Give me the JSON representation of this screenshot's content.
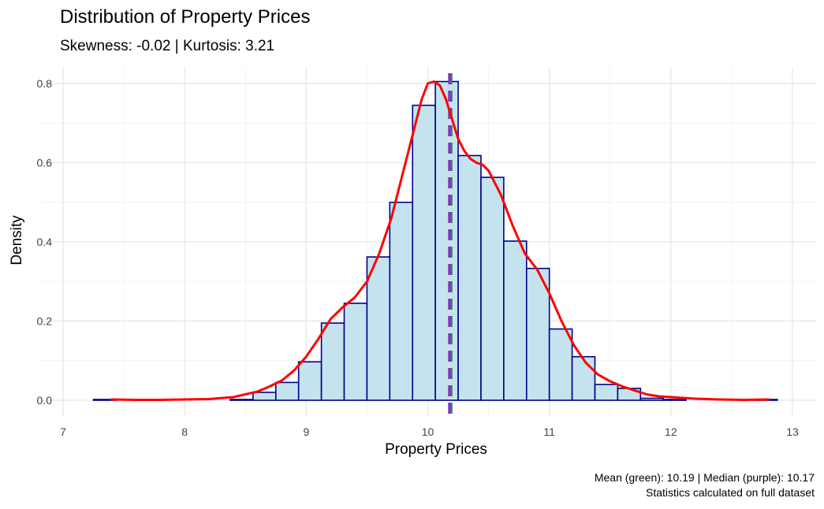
{
  "chart_data": {
    "type": "bar",
    "title": "Distribution of Property Prices",
    "subtitle": "Skewness: -0.02 | Kurtosis: 3.21",
    "xlabel": "Property Prices",
    "ylabel": "Density",
    "caption_lines": [
      "Mean (green): 10.19 | Median (purple): 10.17",
      "Statistics calculated on full dataset"
    ],
    "xlim": [
      7,
      13
    ],
    "ylim": [
      0,
      0.8
    ],
    "x_ticks": [
      "7",
      "8",
      "9",
      "10",
      "11",
      "12",
      "13"
    ],
    "y_ticks": [
      "0.0",
      "0.2",
      "0.4",
      "0.6",
      "0.8"
    ],
    "grid": true,
    "histogram": {
      "bin_width": 0.1875,
      "bin_starts": [
        7.25,
        7.4375,
        7.625,
        7.8125,
        8.0,
        8.1875,
        8.375,
        8.5625,
        8.75,
        8.9375,
        9.125,
        9.3125,
        9.5,
        9.6875,
        9.875,
        10.0625,
        10.25,
        10.4375,
        10.625,
        10.8125,
        11.0,
        11.1875,
        11.375,
        11.5625,
        11.75,
        11.9375,
        12.125,
        12.3125,
        12.5,
        12.6875
      ],
      "values": [
        0.002,
        0.0,
        0.0,
        0.0,
        0.0,
        0.0,
        0.002,
        0.02,
        0.045,
        0.097,
        0.195,
        0.245,
        0.362,
        0.5,
        0.745,
        0.805,
        0.618,
        0.563,
        0.402,
        0.333,
        0.18,
        0.11,
        0.04,
        0.03,
        0.005,
        0.002,
        0.0,
        0.0,
        0.0,
        0.002
      ],
      "fill": "#c5e3ee",
      "stroke": "#00008b"
    },
    "density_curve": {
      "color": "#ff0000",
      "x": [
        7.4,
        7.6,
        7.8,
        8.0,
        8.2,
        8.4,
        8.6,
        8.7,
        8.8,
        8.9,
        9.0,
        9.1,
        9.2,
        9.3,
        9.4,
        9.5,
        9.6,
        9.7,
        9.8,
        9.9,
        9.95,
        10.0,
        10.05,
        10.1,
        10.15,
        10.2,
        10.25,
        10.3,
        10.35,
        10.4,
        10.45,
        10.5,
        10.6,
        10.7,
        10.8,
        10.9,
        11.0,
        11.1,
        11.2,
        11.3,
        11.4,
        11.5,
        11.6,
        11.7,
        11.8,
        11.9,
        12.0,
        12.2,
        12.4,
        12.6,
        12.8
      ],
      "y": [
        0.002,
        0.001,
        0.001,
        0.002,
        0.003,
        0.008,
        0.022,
        0.035,
        0.05,
        0.075,
        0.11,
        0.155,
        0.205,
        0.235,
        0.26,
        0.3,
        0.37,
        0.46,
        0.58,
        0.7,
        0.76,
        0.8,
        0.805,
        0.795,
        0.76,
        0.71,
        0.66,
        0.63,
        0.61,
        0.6,
        0.595,
        0.58,
        0.52,
        0.44,
        0.37,
        0.33,
        0.27,
        0.2,
        0.14,
        0.095,
        0.065,
        0.048,
        0.035,
        0.025,
        0.015,
        0.01,
        0.008,
        0.004,
        0.002,
        0.001,
        0.002
      ]
    },
    "mean": {
      "value": 10.19,
      "color": "#2e8b57"
    },
    "median": {
      "value": 10.17,
      "color": "#7b3fb8"
    }
  }
}
